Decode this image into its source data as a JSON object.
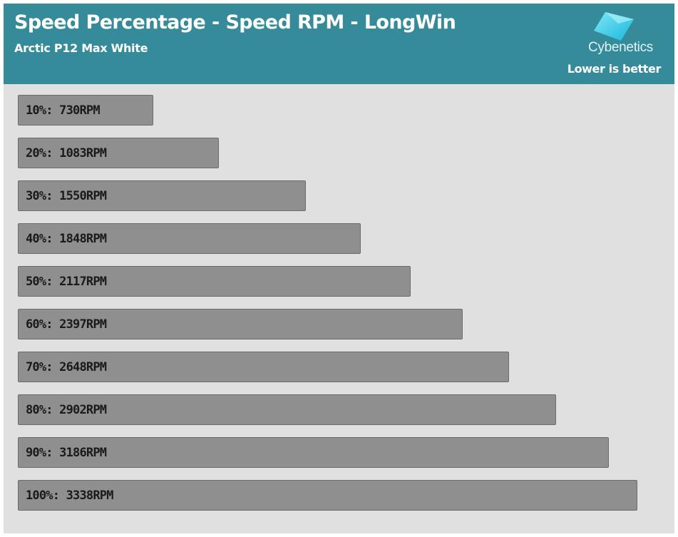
{
  "header": {
    "title": "Speed Percentage - Speed RPM - LongWin",
    "subtitle": "Arctic P12 Max White",
    "logo_text": "Cybenetics",
    "note": "Lower is better"
  },
  "colors": {
    "header_bg": "#358b9a",
    "plot_bg": "#e0e0e0",
    "bar_fill": "#8f8f8f",
    "bar_border": "#6c6c6c",
    "logo_cyan": "#2ec9e6"
  },
  "chart_data": {
    "type": "bar",
    "orientation": "horizontal",
    "title": "Speed Percentage - Speed RPM - LongWin",
    "subtitle": "Arctic P12 Max White",
    "categories": [
      "10%",
      "20%",
      "30%",
      "40%",
      "50%",
      "60%",
      "70%",
      "80%",
      "90%",
      "100%"
    ],
    "values": [
      730,
      1083,
      1550,
      1848,
      2117,
      2397,
      2648,
      2902,
      3186,
      3338
    ],
    "labels": [
      "10%: 730RPM",
      "20%: 1083RPM",
      "30%: 1550RPM",
      "40%: 1848RPM",
      "50%: 2117RPM",
      "60%: 2397RPM",
      "70%: 2648RPM",
      "80%: 2902RPM",
      "90%: 3186RPM",
      "100%: 3338RPM"
    ],
    "unit": "RPM",
    "xlabel": "",
    "ylabel": "",
    "grid": false,
    "legend": "none"
  }
}
